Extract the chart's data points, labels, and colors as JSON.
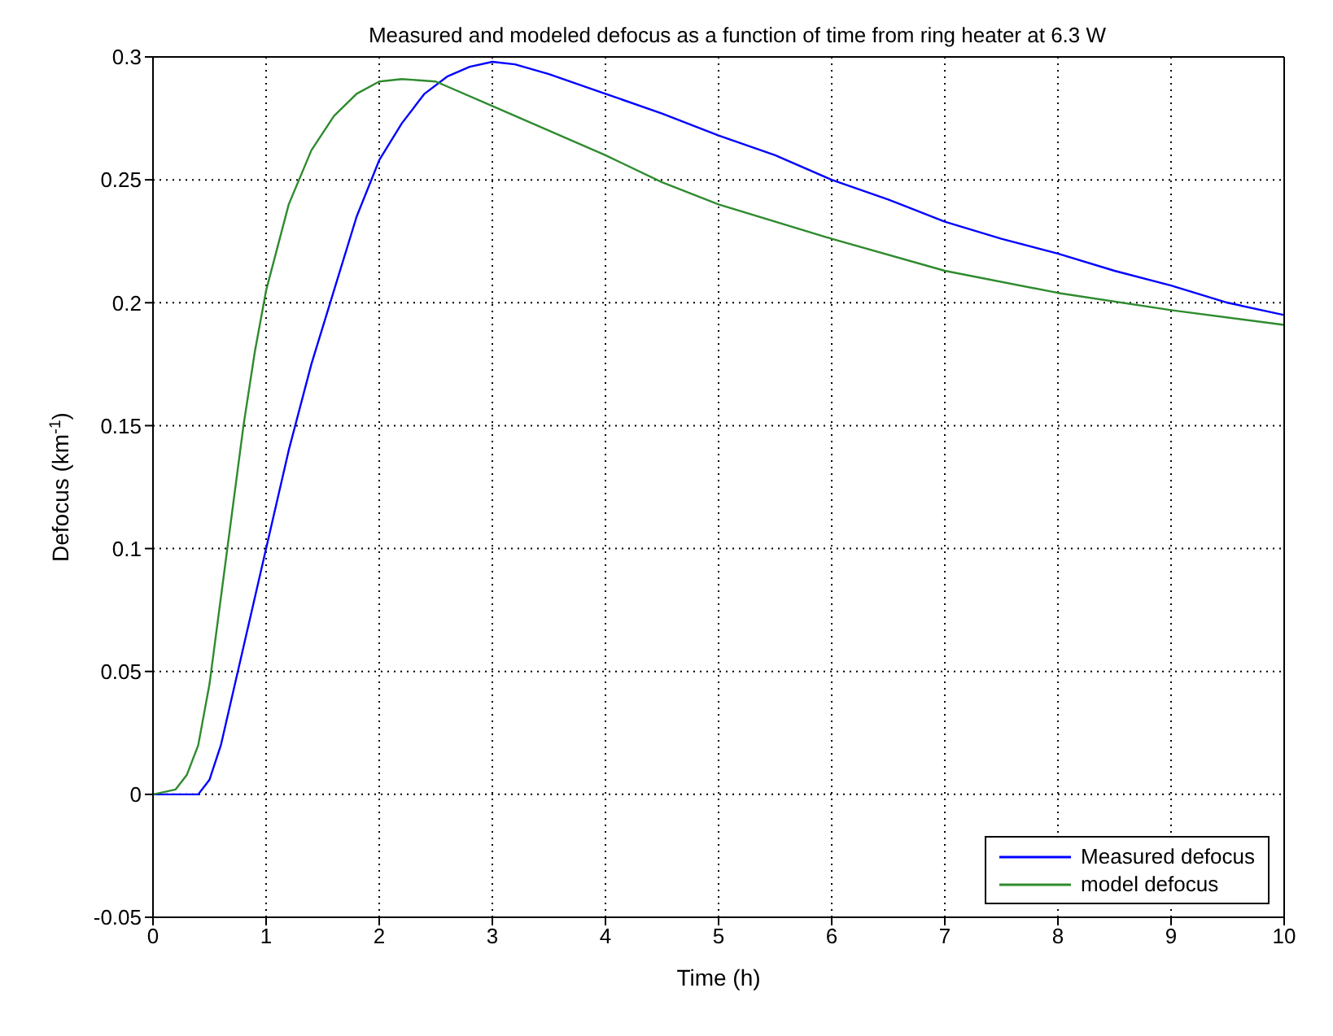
{
  "chart_data": {
    "type": "line",
    "title": "Measured and modeled defocus as a function of time from ring heater at 6.3 W",
    "xlabel": "Time (h)",
    "ylabel": "Defocus (km$^{-1}$)",
    "xlim": [
      0,
      10
    ],
    "xticks": [
      0,
      1,
      2,
      3,
      4,
      5,
      6,
      7,
      8,
      9,
      10
    ],
    "ylim": [
      -0.05,
      0.3
    ],
    "yticks": [
      -0.05,
      0,
      0.05,
      0.1,
      0.15,
      0.2,
      0.25,
      0.3
    ],
    "grid": true,
    "legend": "bottom right",
    "line_style": "solid",
    "marker": "none",
    "series": [
      {
        "name": "Measured defocus",
        "color": "#0000ff",
        "x": [
          0,
          0.2,
          0.4,
          0.5,
          0.6,
          0.7,
          0.8,
          0.9,
          1.0,
          1.2,
          1.4,
          1.6,
          1.8,
          2.0,
          2.2,
          2.4,
          2.6,
          2.8,
          3.0,
          3.2,
          3.5,
          4.0,
          4.5,
          5.0,
          5.5,
          6.0,
          6.5,
          7.0,
          7.5,
          8.0,
          8.5,
          9.0,
          9.5,
          10
        ],
        "values": [
          0,
          0,
          0,
          0.006,
          0.02,
          0.04,
          0.06,
          0.08,
          0.1,
          0.14,
          0.175,
          0.205,
          0.235,
          0.258,
          0.273,
          0.285,
          0.292,
          0.296,
          0.298,
          0.297,
          0.293,
          0.285,
          0.277,
          0.268,
          0.26,
          0.25,
          0.242,
          0.233,
          0.226,
          0.22,
          0.213,
          0.207,
          0.2,
          0.195
        ]
      },
      {
        "name": "model defocus",
        "color": "#2e8b2e",
        "x": [
          0,
          0.2,
          0.3,
          0.4,
          0.5,
          0.6,
          0.7,
          0.8,
          0.9,
          1.0,
          1.2,
          1.4,
          1.6,
          1.8,
          2.0,
          2.2,
          2.5,
          3.0,
          3.5,
          4.0,
          4.5,
          5.0,
          6.0,
          7.0,
          8.0,
          9.0,
          10
        ],
        "values": [
          0,
          0.002,
          0.008,
          0.02,
          0.045,
          0.08,
          0.115,
          0.15,
          0.18,
          0.205,
          0.24,
          0.262,
          0.276,
          0.285,
          0.29,
          0.291,
          0.29,
          0.28,
          0.27,
          0.26,
          0.249,
          0.24,
          0.226,
          0.213,
          0.204,
          0.197,
          0.191
        ]
      }
    ]
  }
}
